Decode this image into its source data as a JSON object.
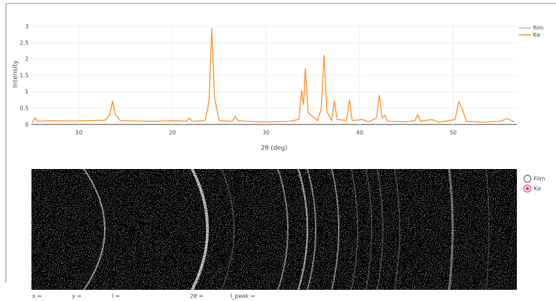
{
  "chart_data": {
    "type": "line",
    "xlabel": "2θ (deg)",
    "ylabel": "Intensity",
    "x": [
      5,
      5.3,
      5.6,
      7,
      9,
      11,
      12.8,
      13.3,
      13.6,
      13.9,
      14.4,
      16,
      18,
      20,
      21.5,
      21.8,
      22.1,
      23.5,
      23.9,
      24.2,
      24.5,
      25,
      26.4,
      26.7,
      27,
      29,
      31,
      32.5,
      33.5,
      33.8,
      34,
      34.2,
      34.5,
      35.5,
      35.9,
      36.2,
      36.5,
      37,
      37.3,
      37.6,
      38.6,
      38.9,
      39.2,
      40.3,
      41,
      41.8,
      42.1,
      42.4,
      42.7,
      43,
      45,
      45.9,
      46.2,
      46.5,
      47.7,
      48.5,
      50.2,
      50.6,
      51,
      51.4,
      53,
      55,
      55.8,
      56.5
    ],
    "series": [
      {
        "name": "film",
        "color": "#9ec3dc"
      },
      {
        "name": "Kα",
        "color": "#ff8c1a",
        "values": [
          0.05,
          0.2,
          0.1,
          0.12,
          0.11,
          0.12,
          0.13,
          0.3,
          0.72,
          0.3,
          0.12,
          0.11,
          0.1,
          0.12,
          0.1,
          0.2,
          0.1,
          0.12,
          0.7,
          2.95,
          0.8,
          0.12,
          0.1,
          0.25,
          0.12,
          0.08,
          0.08,
          0.1,
          0.15,
          1.05,
          0.6,
          1.72,
          0.35,
          0.12,
          0.5,
          2.13,
          0.4,
          0.12,
          0.72,
          0.15,
          0.12,
          0.75,
          0.12,
          0.15,
          0.08,
          0.2,
          0.9,
          0.2,
          0.28,
          0.1,
          0.08,
          0.12,
          0.3,
          0.1,
          0.15,
          0.07,
          0.15,
          0.7,
          0.45,
          0.1,
          0.07,
          0.1,
          0.18,
          0.08
        ]
      }
    ],
    "xlim": [
      4.93,
      56.8
    ],
    "ylim": [
      -0.08,
      3.17
    ],
    "xticks": [
      10,
      20,
      30,
      40,
      50
    ],
    "yticks": [
      0,
      0.5,
      1,
      1.5,
      2,
      2.5,
      3
    ],
    "grid": true
  },
  "radio": {
    "options": [
      "Film",
      "Kα"
    ],
    "selected": 1
  },
  "readout": [
    "x =",
    "y =",
    "I =",
    "2θ =",
    "I_peak ="
  ]
}
